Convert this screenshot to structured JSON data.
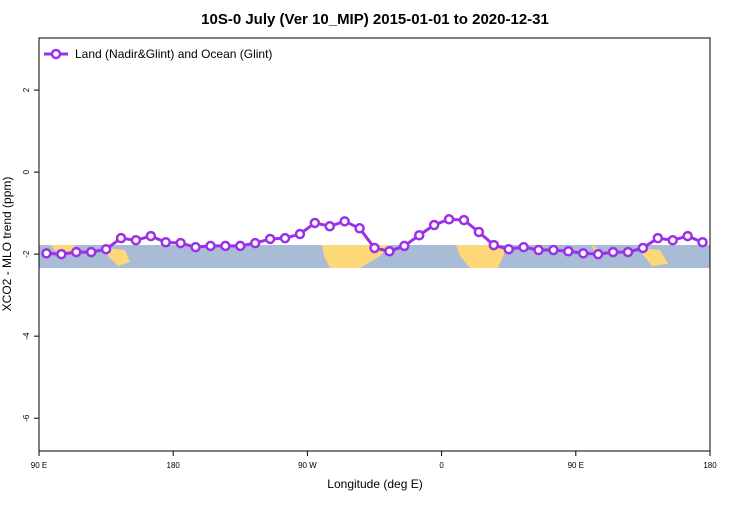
{
  "chart_data": {
    "type": "line",
    "title": "10S-0 July (Ver 10_MIP)   2015-01-01 to 2020-12-31",
    "x_label": "Longitude (deg E)",
    "y_label": "XCO2 - MLO trend (ppm)",
    "x": [
      95,
      105,
      115,
      125,
      135,
      145,
      155,
      165,
      175,
      185,
      195,
      205,
      215,
      225,
      235,
      245,
      255,
      265,
      275,
      285,
      295,
      305,
      315,
      325,
      335,
      345,
      355,
      365,
      375,
      385,
      395,
      405,
      415,
      425,
      435,
      445,
      455,
      465,
      475,
      485,
      495,
      505,
      515,
      525,
      535
    ],
    "series": [
      {
        "name": "Land (Nadir&Glint) and Ocean (Glint)",
        "color": "#9b30e8",
        "values": [
          -1.98,
          -2.0,
          -1.95,
          -1.95,
          -1.88,
          -1.61,
          -1.66,
          -1.56,
          -1.71,
          -1.73,
          -1.83,
          -1.8,
          -1.8,
          -1.8,
          -1.73,
          -1.63,
          -1.61,
          -1.51,
          -1.24,
          -1.32,
          -1.2,
          -1.37,
          -1.85,
          -1.93,
          -1.8,
          -1.54,
          -1.29,
          -1.15,
          -1.17,
          -1.46,
          -1.78,
          -1.88,
          -1.83,
          -1.9,
          -1.9,
          -1.93,
          -1.98,
          -2.0,
          -1.95,
          -1.95,
          -1.85,
          -1.61,
          -1.66,
          -1.56,
          -1.71
        ]
      }
    ],
    "xlim": [
      90,
      540
    ],
    "xticks": [
      {
        "value": 90,
        "label": "90 E"
      },
      {
        "value": 180,
        "label": "180"
      },
      {
        "value": 270,
        "label": "90 W"
      },
      {
        "value": 360,
        "label": "0"
      },
      {
        "value": 450,
        "label": "90 E"
      },
      {
        "value": 540,
        "label": "180"
      }
    ],
    "ylim": [
      -6.8,
      3.27
    ],
    "yticks": [
      2,
      0,
      -2,
      -4,
      -6
    ],
    "legend": "top-left"
  }
}
